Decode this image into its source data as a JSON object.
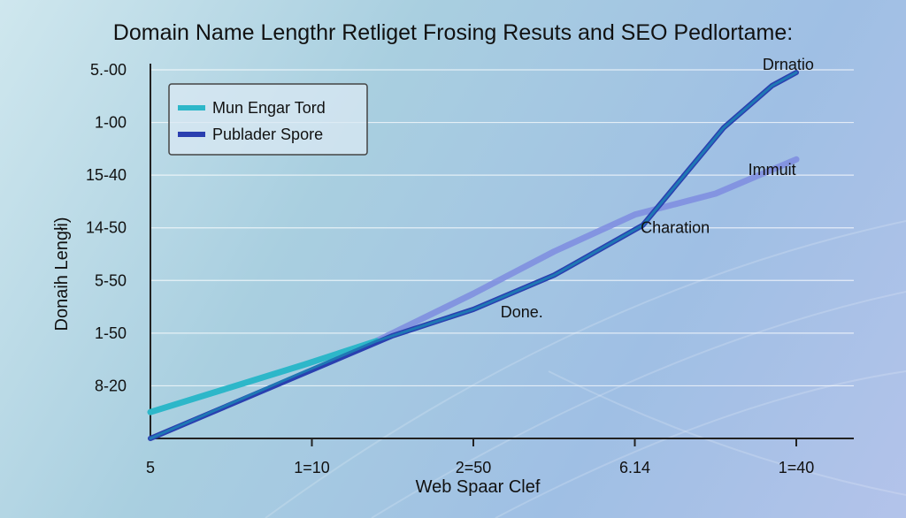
{
  "chart_data": {
    "type": "line",
    "title": "Domain Name Lengthr Retliget Frosing Resuts and SEO Pedlortame:",
    "xlabel": "Web Spaar Clef",
    "ylabel": "Donaih Lengłi)",
    "x_ticks": [
      "5",
      "1=10",
      "2=50",
      "6.14",
      "1=40"
    ],
    "y_ticks": [
      "5.-00",
      "1-00",
      "15-40",
      "14-50",
      "5-50",
      "1-50",
      "8-20"
    ],
    "xlim": [
      0,
      4
    ],
    "ylim": [
      0,
      7
    ],
    "grid": true,
    "legend_position": "top-left",
    "series": [
      {
        "name": "Mun Engar Tord",
        "color": "#2db7c9",
        "x": [
          0,
          0.95,
          1.4
        ],
        "y": [
          0.5,
          1.4,
          1.85
        ]
      },
      {
        "name": "Publader Spore",
        "color": "#2a3fb0",
        "x": [
          0,
          1.0,
          1.5,
          2.0,
          2.5,
          3.05,
          3.55,
          3.85,
          4.0
        ],
        "y": [
          0,
          1.3,
          1.95,
          2.45,
          3.1,
          4.05,
          5.9,
          6.7,
          6.95
        ]
      },
      {
        "name": "",
        "color": "#7f8fe0",
        "x": [
          1.4,
          2.0,
          2.5,
          3.0,
          3.5,
          4.0
        ],
        "y": [
          1.85,
          2.75,
          3.55,
          4.25,
          4.65,
          5.3
        ]
      },
      {
        "name": "",
        "color": "#1f78b4",
        "x": [
          0,
          0.9,
          1.4,
          2.0,
          2.5,
          3.05,
          3.55,
          3.85,
          4.0
        ],
        "y": [
          0,
          1.2,
          1.85,
          2.45,
          3.1,
          4.05,
          5.9,
          6.7,
          6.95
        ]
      }
    ],
    "annotations": [
      {
        "text": "Drnatio",
        "x": 3.95,
        "y": 7.0
      },
      {
        "text": "Immuit",
        "x": 3.85,
        "y": 5.0
      },
      {
        "text": "Charation",
        "x": 3.25,
        "y": 3.9
      },
      {
        "text": "Done.",
        "x": 2.3,
        "y": 2.3
      }
    ]
  }
}
